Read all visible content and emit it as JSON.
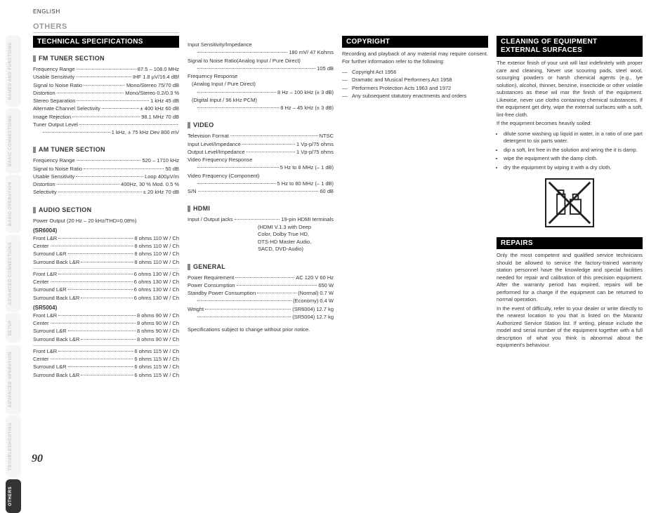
{
  "lang": "ENGLISH",
  "page_number": "90",
  "colors": {
    "bar_bg": "#000000",
    "sub_marker": "#888888",
    "tab_inactive": "#f5f5f5",
    "tab_active_bg": "#333333"
  },
  "side_tabs": [
    {
      "label": "NAMES AND FUNCTIONS",
      "active": false
    },
    {
      "label": "BASIC CONNECTIONS",
      "active": false
    },
    {
      "label": "BASIC OPERATION",
      "active": false
    },
    {
      "label": "ADVANCED CONNECTIONS",
      "active": false
    },
    {
      "label": "SETUP",
      "active": false
    },
    {
      "label": "ADVANCED OPERATION",
      "active": false
    },
    {
      "label": "TROUBLESHOOTING",
      "active": false
    },
    {
      "label": "OTHERS",
      "active": true
    }
  ],
  "others_heading": "OTHERS",
  "tech_spec_bar": "TECHNICAL SPECIFICATIONS",
  "fm": {
    "heading": "FM TUNER SECTION",
    "rows": [
      {
        "l": "Frequency Range",
        "v": "87.5 – 108.0 MHz"
      },
      {
        "l": "Usable Sensitivity",
        "v": "IHF 1.8 µV/16.4 dBf"
      },
      {
        "l": "Signal to Noise Ratio",
        "v": "Mono/Stereo 75/70 dB"
      },
      {
        "l": "Distortion",
        "v": "Mono/Stereo 0.2/0.3 %"
      },
      {
        "l": "Stereo Separation",
        "v": "1 kHz 45 dB"
      },
      {
        "l": "Alternate Channel Selectivity",
        "v": "± 400 kHz 60 dB"
      },
      {
        "l": "Image Rejection",
        "v": "98.1 MHz 70 dB"
      },
      {
        "l": "Tuner Output Level",
        "v": ""
      }
    ],
    "tuner_out_val": "1 kHz, ± 75 kHz Dev 800 mV"
  },
  "am": {
    "heading": "AM TUNER SECTION",
    "rows": [
      {
        "l": "Frequency Range",
        "v": "520 – 1710 kHz"
      },
      {
        "l": "Signal to Noise Ratio",
        "v": "50 dB"
      },
      {
        "l": "Usable Sensitivity",
        "v": "Loop 400µV/m"
      },
      {
        "l": "Distortion",
        "v": "400Hz, 30 % Mod. 0.5 %"
      },
      {
        "l": "Selectivity",
        "v": "± 20 kHz 70 dB"
      }
    ]
  },
  "audio": {
    "heading": "AUDIO SECTION",
    "power_label": "Power Output (20 Hz – 20 kHz/THD=0.08%)",
    "model1": "(SR6004)",
    "m1_rows_a": [
      {
        "l": "Front L&R",
        "v": "8 ohms 110 W / Ch"
      },
      {
        "l": "Center",
        "v": "8 ohms 110 W / Ch"
      },
      {
        "l": "Surround L&R",
        "v": "8 ohms 110 W / Ch"
      },
      {
        "l": "Surround Back L&R",
        "v": "8 ohms 110 W / Ch"
      }
    ],
    "m1_rows_b": [
      {
        "l": "Front L&R",
        "v": "6 ohms 130 W / Ch"
      },
      {
        "l": "Center",
        "v": "6 ohms 130 W / Ch"
      },
      {
        "l": "Surround L&R",
        "v": "6 ohms 130 W / Ch"
      },
      {
        "l": "Surround Back L&R",
        "v": "6 ohms 130 W / Ch"
      }
    ],
    "model2": "(SR5004)",
    "m2_rows_a": [
      {
        "l": "Front L&R",
        "v": "8 ohms 90 W / Ch"
      },
      {
        "l": "Center",
        "v": "8 ohms 90 W / Ch"
      },
      {
        "l": "Surround L&R",
        "v": "8 ohms 90 W / Ch"
      },
      {
        "l": "Surround Back L&R",
        "v": "8 ohms 90 W / Ch"
      }
    ],
    "m2_rows_b": [
      {
        "l": "Front L&R",
        "v": "6 ohms 115 W / Ch"
      },
      {
        "l": "Center",
        "v": "6 ohms 115 W / Ch"
      },
      {
        "l": "Surround L&R",
        "v": "6 ohms 115 W / Ch"
      },
      {
        "l": "Surround Back L&R",
        "v": "6 ohms 115 W / Ch"
      }
    ]
  },
  "col2": {
    "sens_label": "Input Sensitivity/Impedance",
    "sens_val": "180 mV/ 47 Kohms",
    "snr_label": "Signal to Noise Ratio(Analog Input / Pure Direct)",
    "snr_val": "105 dB",
    "freq_label": "Frequency Response",
    "freq_analog_label": "(Analog Input / Pure Direct)",
    "freq_analog_val": "8 Hz – 100 kHz (± 3 dB)",
    "freq_digital_label": "(Digital Input / 96 kHz PCM)",
    "freq_digital_val": "8 Hz – 45 kHz (± 3 dB)",
    "video_heading": "VIDEO",
    "video_rows": [
      {
        "l": "Television Format",
        "v": "NTSC"
      },
      {
        "l": "Input Level/Impedance",
        "v": "1 Vp-p/75 ohms"
      },
      {
        "l": "Output Level/Impedance",
        "v": "1 Vp-p/75 ohms"
      }
    ],
    "vfr_label": "Video Frequency Response",
    "vfr_val": "5 Hz to 8 MHz (– 1 dB)",
    "vfc_label": "Video Frequency (Component)",
    "vfc_val": "5 Hz to 80 MHz (– 1 dB)",
    "sn_l": "S/N",
    "sn_v": "60 dB",
    "hdmi_heading": "HDMI",
    "hdmi_l": "Input / Output jacks",
    "hdmi_v": "19-pin HDMI terminals",
    "hdmi_extra1": "(HDMI V.1.3 with Deep",
    "hdmi_extra2": "Color, Dolby True HD,",
    "hdmi_extra3": "DTS-HD Master Audio,",
    "hdmi_extra4": "SACD, DVD-Audio)",
    "general_heading": "GENERAL",
    "gen_rows": [
      {
        "l": "Power Requirement",
        "v": "AC 120 V 60 Hz"
      },
      {
        "l": "Power Consumption",
        "v": "650 W"
      },
      {
        "l": "Standby Power Consumption",
        "v": "(Normal) 0.7 W"
      }
    ],
    "standby_eco_v": "(Economy) 0.4 W",
    "weight_l": "Weight",
    "weight_v1": "(SR6004) 12.7 kg",
    "weight_v2": "(SR5004) 12.7 kg",
    "notice": "Specifications subject to change without prior notice."
  },
  "copyright": {
    "bar": "COPYRIGHT",
    "para": "Recording and playback of any material may require consent. For further information refer to the following:",
    "items": [
      "Copyright Act 1956",
      "Dramatic and Musical Performers Act 1958",
      "Performers Protection Acts 1963 and 1972",
      "Any subsequent statutory enactments and orders"
    ]
  },
  "cleaning": {
    "bar": "CLEANING OF EQUIPMENT EXTERNAL SURFACES",
    "para1": "The exterior finish of your unit will last indefinitely with proper care and cleaning, Never use scouring pads, steel wool, scourging powders or harsh chemical agents (e.g., lye solution), alcohol, thinner, benzine, insecticide or other volatile substances as these wil mar the finish of the equipment.  Likewise, never use cloths containing chemical substances. If the equipment get dirty, wipe the external surfaces with a soft, lint-free cloth.",
    "para2": "If the equipment becomes heavily soiled:",
    "bullets": [
      "dilute some washing up liquid in water, in a ratio of one part detergent to six parts water.",
      "dip a soft, lint free in the solution and wring the it is damp.",
      "wipe the equipment with the damp cloth.",
      "dry the equipment by wiping it with a dry cloth."
    ]
  },
  "repairs": {
    "bar": "REPAIRS",
    "para1": "Only the most competent and  qualified service technicians should be allowed to service the factory-trained warranty station personnel have the knowledge and special facilities needed for repair and calibration of this precision equipment. After the warranty period has expired, repairs will be performed for a charge if the equipment can be returned to  normal operation.",
    "para2": "In the event of difficulty, refer to your dealer or write directly to the nearest location to you that is listed on the Marantz Authorized Service Station list. If writing, please include the model and serial number of the equipment together with a full description of what you think is abnormal about the equipment's behaviour."
  }
}
